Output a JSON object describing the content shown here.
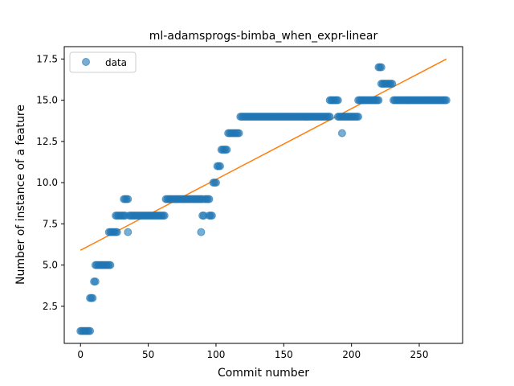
{
  "chart_data": {
    "type": "scatter",
    "title": "ml-adamsprogs-bimba_when_expr-linear",
    "xlabel": "Commit number",
    "ylabel": "Number of instance of a feature",
    "xlim": [
      -12,
      282
    ],
    "ylim": [
      0.25,
      18.25
    ],
    "xticks": [
      0,
      50,
      100,
      150,
      200,
      250
    ],
    "xtick_labels": [
      "0",
      "50",
      "100",
      "150",
      "200",
      "250"
    ],
    "yticks": [
      2.5,
      5.0,
      7.5,
      10.0,
      12.5,
      15.0,
      17.5
    ],
    "ytick_labels": [
      "2.5",
      "5.0",
      "7.5",
      "10.0",
      "12.5",
      "15.0",
      "17.5"
    ],
    "legend": {
      "position": "top-left",
      "entries": [
        "data"
      ]
    },
    "grid": false,
    "colors": {
      "points": "#1f77b4",
      "fit_line": "#ff7f0e"
    },
    "series": [
      {
        "name": "data",
        "kind": "scatter",
        "segments": [
          {
            "x_start": 0,
            "x_end": 7,
            "y": 1
          },
          {
            "x_start": 7,
            "x_end": 9,
            "y": 3
          },
          {
            "x_start": 10,
            "x_end": 11,
            "y": 4
          },
          {
            "x_start": 11,
            "x_end": 22,
            "y": 5
          },
          {
            "x_start": 21,
            "x_end": 27,
            "y": 7
          },
          {
            "x_start": 26,
            "x_end": 33,
            "y": 8
          },
          {
            "x_start": 32,
            "x_end": 35,
            "y": 9
          },
          {
            "x_start": 36,
            "x_end": 62,
            "y": 8
          },
          {
            "x_start": 63,
            "x_end": 90,
            "y": 9
          },
          {
            "x_start": 90,
            "x_end": 91,
            "y": 8
          },
          {
            "x_start": 92,
            "x_end": 95,
            "y": 9
          },
          {
            "x_start": 95,
            "x_end": 97,
            "y": 8
          },
          {
            "x_start": 98,
            "x_end": 100,
            "y": 10
          },
          {
            "x_start": 101,
            "x_end": 103,
            "y": 11
          },
          {
            "x_start": 104,
            "x_end": 108,
            "y": 12
          },
          {
            "x_start": 109,
            "x_end": 117,
            "y": 13
          },
          {
            "x_start": 118,
            "x_end": 184,
            "y": 14
          },
          {
            "x_start": 184,
            "x_end": 190,
            "y": 15
          },
          {
            "x_start": 190,
            "x_end": 205,
            "y": 14
          },
          {
            "x_start": 205,
            "x_end": 220,
            "y": 15
          },
          {
            "x_start": 220,
            "x_end": 222,
            "y": 17
          },
          {
            "x_start": 222,
            "x_end": 230,
            "y": 16
          },
          {
            "x_start": 231,
            "x_end": 270,
            "y": 15
          }
        ],
        "extra_points": [
          {
            "x": 35,
            "y": 7
          },
          {
            "x": 89,
            "y": 7
          },
          {
            "x": 193,
            "y": 13
          }
        ]
      },
      {
        "kind": "line",
        "x": [
          0,
          270
        ],
        "y": [
          5.9,
          17.5
        ]
      }
    ]
  }
}
